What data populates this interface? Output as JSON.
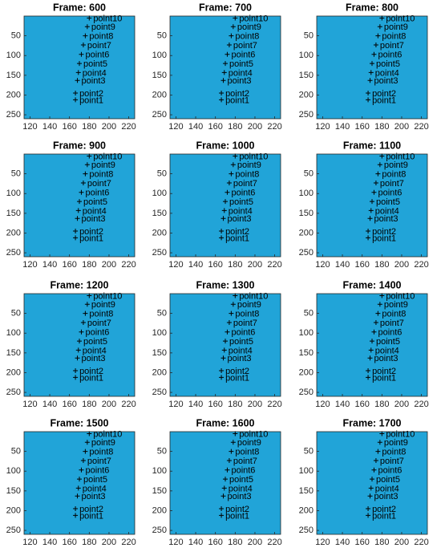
{
  "chart_data": [
    {
      "type": "scatter",
      "title": "Frame: 600",
      "x": [
        166,
        166,
        168,
        169,
        170,
        172,
        174,
        176,
        178,
        180
      ],
      "y": [
        212,
        195,
        163,
        143,
        120,
        97,
        73,
        50,
        27,
        5
      ],
      "point_labels": [
        "point1",
        "point2",
        "point3",
        "point4",
        "point5",
        "point6",
        "point7",
        "point8",
        "point9",
        "point10"
      ],
      "xlim": [
        114,
        226
      ],
      "ylim": [
        0,
        260
      ],
      "xticks": [
        120,
        140,
        160,
        180,
        200,
        220
      ],
      "yticks": [
        50,
        100,
        150,
        200,
        250
      ],
      "y_reversed": true,
      "color": "#21a4d8",
      "marker_color": "#000000"
    },
    {
      "type": "scatter",
      "title": "Frame: 700",
      "x": [
        166,
        166,
        168,
        169,
        170,
        172,
        174,
        176,
        178,
        180
      ],
      "y": [
        212,
        195,
        163,
        143,
        120,
        97,
        73,
        50,
        27,
        5
      ],
      "point_labels": [
        "point1",
        "point2",
        "point3",
        "point4",
        "point5",
        "point6",
        "point7",
        "point8",
        "point9",
        "point10"
      ],
      "xlim": [
        114,
        226
      ],
      "ylim": [
        0,
        260
      ],
      "xticks": [
        120,
        140,
        160,
        180,
        200,
        220
      ],
      "yticks": [
        50,
        100,
        150,
        200,
        250
      ],
      "y_reversed": true,
      "color": "#21a4d8",
      "marker_color": "#000000"
    },
    {
      "type": "scatter",
      "title": "Frame: 800",
      "x": [
        166,
        166,
        168,
        169,
        170,
        172,
        174,
        176,
        178,
        180
      ],
      "y": [
        212,
        195,
        163,
        143,
        120,
        97,
        73,
        50,
        27,
        5
      ],
      "point_labels": [
        "point1",
        "point2",
        "point3",
        "point4",
        "point5",
        "point6",
        "point7",
        "point8",
        "point9",
        "point10"
      ],
      "xlim": [
        114,
        226
      ],
      "ylim": [
        0,
        260
      ],
      "xticks": [
        120,
        140,
        160,
        180,
        200,
        220
      ],
      "yticks": [
        50,
        100,
        150,
        200,
        250
      ],
      "y_reversed": true,
      "color": "#21a4d8",
      "marker_color": "#000000"
    },
    {
      "type": "scatter",
      "title": "Frame: 900",
      "x": [
        166,
        166,
        168,
        169,
        170,
        172,
        174,
        176,
        178,
        180
      ],
      "y": [
        212,
        195,
        163,
        143,
        120,
        97,
        73,
        50,
        27,
        5
      ],
      "point_labels": [
        "point1",
        "point2",
        "point3",
        "point4",
        "point5",
        "point6",
        "point7",
        "point8",
        "point9",
        "point10"
      ],
      "xlim": [
        114,
        226
      ],
      "ylim": [
        0,
        260
      ],
      "xticks": [
        120,
        140,
        160,
        180,
        200,
        220
      ],
      "yticks": [
        50,
        100,
        150,
        200,
        250
      ],
      "y_reversed": true,
      "color": "#21a4d8",
      "marker_color": "#000000"
    },
    {
      "type": "scatter",
      "title": "Frame: 1000",
      "x": [
        166,
        166,
        168,
        169,
        170,
        172,
        174,
        176,
        178,
        180
      ],
      "y": [
        212,
        195,
        163,
        143,
        120,
        97,
        73,
        50,
        27,
        5
      ],
      "point_labels": [
        "point1",
        "point2",
        "point3",
        "point4",
        "point5",
        "point6",
        "point7",
        "point8",
        "point9",
        "point10"
      ],
      "xlim": [
        114,
        226
      ],
      "ylim": [
        0,
        260
      ],
      "xticks": [
        120,
        140,
        160,
        180,
        200,
        220
      ],
      "yticks": [
        50,
        100,
        150,
        200,
        250
      ],
      "y_reversed": true,
      "color": "#21a4d8",
      "marker_color": "#000000"
    },
    {
      "type": "scatter",
      "title": "Frame: 1100",
      "x": [
        166,
        166,
        168,
        169,
        170,
        172,
        174,
        176,
        178,
        180
      ],
      "y": [
        212,
        195,
        163,
        143,
        120,
        97,
        73,
        50,
        27,
        5
      ],
      "point_labels": [
        "point1",
        "point2",
        "point3",
        "point4",
        "point5",
        "point6",
        "point7",
        "point8",
        "point9",
        "point10"
      ],
      "xlim": [
        114,
        226
      ],
      "ylim": [
        0,
        260
      ],
      "xticks": [
        120,
        140,
        160,
        180,
        200,
        220
      ],
      "yticks": [
        50,
        100,
        150,
        200,
        250
      ],
      "y_reversed": true,
      "color": "#21a4d8",
      "marker_color": "#000000"
    },
    {
      "type": "scatter",
      "title": "Frame: 1200",
      "x": [
        166,
        166,
        168,
        169,
        170,
        172,
        174,
        176,
        178,
        180
      ],
      "y": [
        212,
        195,
        163,
        143,
        120,
        97,
        73,
        50,
        27,
        5
      ],
      "point_labels": [
        "point1",
        "point2",
        "point3",
        "point4",
        "point5",
        "point6",
        "point7",
        "point8",
        "point9",
        "point10"
      ],
      "xlim": [
        114,
        226
      ],
      "ylim": [
        0,
        260
      ],
      "xticks": [
        120,
        140,
        160,
        180,
        200,
        220
      ],
      "yticks": [
        50,
        100,
        150,
        200,
        250
      ],
      "y_reversed": true,
      "color": "#21a4d8",
      "marker_color": "#000000"
    },
    {
      "type": "scatter",
      "title": "Frame: 1300",
      "x": [
        166,
        166,
        168,
        169,
        170,
        172,
        174,
        176,
        178,
        180
      ],
      "y": [
        212,
        195,
        163,
        143,
        120,
        97,
        73,
        50,
        27,
        5
      ],
      "point_labels": [
        "point1",
        "point2",
        "point3",
        "point4",
        "point5",
        "point6",
        "point7",
        "point8",
        "point9",
        "point10"
      ],
      "xlim": [
        114,
        226
      ],
      "ylim": [
        0,
        260
      ],
      "xticks": [
        120,
        140,
        160,
        180,
        200,
        220
      ],
      "yticks": [
        50,
        100,
        150,
        200,
        250
      ],
      "y_reversed": true,
      "color": "#21a4d8",
      "marker_color": "#000000"
    },
    {
      "type": "scatter",
      "title": "Frame: 1400",
      "x": [
        166,
        166,
        168,
        169,
        170,
        172,
        174,
        176,
        178,
        180
      ],
      "y": [
        212,
        195,
        163,
        143,
        120,
        97,
        73,
        50,
        27,
        5
      ],
      "point_labels": [
        "point1",
        "point2",
        "point3",
        "point4",
        "point5",
        "point6",
        "point7",
        "point8",
        "point9",
        "point10"
      ],
      "xlim": [
        114,
        226
      ],
      "ylim": [
        0,
        260
      ],
      "xticks": [
        120,
        140,
        160,
        180,
        200,
        220
      ],
      "yticks": [
        50,
        100,
        150,
        200,
        250
      ],
      "y_reversed": true,
      "color": "#21a4d8",
      "marker_color": "#000000"
    },
    {
      "type": "scatter",
      "title": "Frame: 1500",
      "x": [
        166,
        166,
        168,
        169,
        170,
        172,
        174,
        176,
        178,
        180
      ],
      "y": [
        212,
        195,
        163,
        143,
        120,
        97,
        73,
        50,
        27,
        5
      ],
      "point_labels": [
        "point1",
        "point2",
        "point3",
        "point4",
        "point5",
        "point6",
        "point7",
        "point8",
        "point9",
        "point10"
      ],
      "xlim": [
        114,
        226
      ],
      "ylim": [
        0,
        260
      ],
      "xticks": [
        120,
        140,
        160,
        180,
        200,
        220
      ],
      "yticks": [
        50,
        100,
        150,
        200,
        250
      ],
      "y_reversed": true,
      "color": "#21a4d8",
      "marker_color": "#000000"
    },
    {
      "type": "scatter",
      "title": "Frame: 1600",
      "x": [
        166,
        166,
        168,
        169,
        170,
        172,
        174,
        176,
        178,
        180
      ],
      "y": [
        212,
        195,
        163,
        143,
        120,
        97,
        73,
        50,
        27,
        5
      ],
      "point_labels": [
        "point1",
        "point2",
        "point3",
        "point4",
        "point5",
        "point6",
        "point7",
        "point8",
        "point9",
        "point10"
      ],
      "xlim": [
        114,
        226
      ],
      "ylim": [
        0,
        260
      ],
      "xticks": [
        120,
        140,
        160,
        180,
        200,
        220
      ],
      "yticks": [
        50,
        100,
        150,
        200,
        250
      ],
      "y_reversed": true,
      "color": "#21a4d8",
      "marker_color": "#000000"
    },
    {
      "type": "scatter",
      "title": "Frame: 1700",
      "x": [
        166,
        166,
        168,
        169,
        170,
        172,
        174,
        176,
        178,
        180
      ],
      "y": [
        212,
        195,
        163,
        143,
        120,
        97,
        73,
        50,
        27,
        5
      ],
      "point_labels": [
        "point1",
        "point2",
        "point3",
        "point4",
        "point5",
        "point6",
        "point7",
        "point8",
        "point9",
        "point10"
      ],
      "xlim": [
        114,
        226
      ],
      "ylim": [
        0,
        260
      ],
      "xticks": [
        120,
        140,
        160,
        180,
        200,
        220
      ],
      "yticks": [
        50,
        100,
        150,
        200,
        250
      ],
      "y_reversed": true,
      "color": "#21a4d8",
      "marker_color": "#000000"
    }
  ]
}
